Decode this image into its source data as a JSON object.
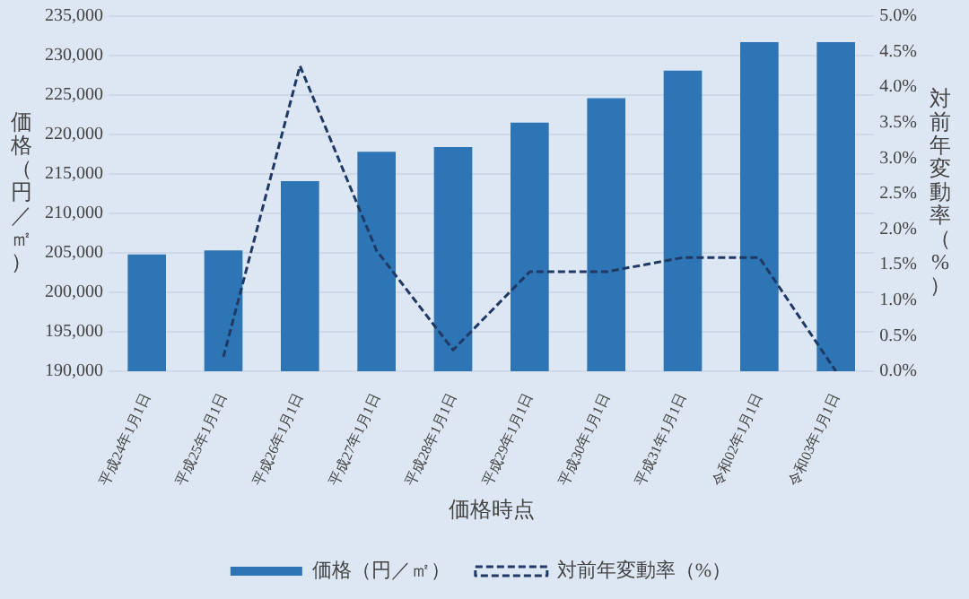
{
  "chart_data": {
    "type": "bar",
    "xlabel": "価格時点",
    "ylabel": "価格（円／㎡）",
    "y2label": "対前年変動率（%）",
    "categories": [
      "平成24年1月1日",
      "平成25年1月1日",
      "平成26年1月1日",
      "平成27年1月1日",
      "平成28年1月1日",
      "平成29年1月1日",
      "平成30年1月1日",
      "平成31年1月1日",
      "令和02年1月1日",
      "令和03年1月1日"
    ],
    "series": [
      {
        "name": "価格（円／㎡）",
        "color": "#2e75b6",
        "values": [
          204800,
          205300,
          214100,
          217800,
          218400,
          221500,
          224600,
          228100,
          231700,
          231700
        ]
      },
      {
        "name": "対前年変動率（%）",
        "type": "line",
        "axis": "y2",
        "color": "#1f3864",
        "line_style": "dashed",
        "marker": "none",
        "values": [
          null,
          0.2,
          4.3,
          1.7,
          0.3,
          1.4,
          1.4,
          1.6,
          1.6,
          0.0
        ]
      }
    ],
    "ylim": [
      190000,
      235000
    ],
    "yticks": [
      {
        "value": 190000,
        "label": "190,000"
      },
      {
        "value": 195000,
        "label": "195,000"
      },
      {
        "value": 200000,
        "label": "200,000"
      },
      {
        "value": 205000,
        "label": "205,000"
      },
      {
        "value": 210000,
        "label": "210,000"
      },
      {
        "value": 215000,
        "label": "215,000"
      },
      {
        "value": 220000,
        "label": "220,000"
      },
      {
        "value": 225000,
        "label": "225,000"
      },
      {
        "value": 230000,
        "label": "230,000"
      },
      {
        "value": 235000,
        "label": "235,000"
      }
    ],
    "y2lim": [
      0,
      5
    ],
    "y2ticks": [
      {
        "value": 0,
        "label": "0.0%"
      },
      {
        "value": 0.5,
        "label": "0.5%"
      },
      {
        "value": 1,
        "label": "1.0%"
      },
      {
        "value": 1.5,
        "label": "1.5%"
      },
      {
        "value": 2,
        "label": "2.0%"
      },
      {
        "value": 2.5,
        "label": "2.5%"
      },
      {
        "value": 3,
        "label": "3.0%"
      },
      {
        "value": 3.5,
        "label": "3.5%"
      },
      {
        "value": 4,
        "label": "4.0%"
      },
      {
        "value": 4.5,
        "label": "4.5%"
      },
      {
        "value": 5,
        "label": "5.0%"
      }
    ],
    "grid": "y",
    "legend": "bottom"
  }
}
